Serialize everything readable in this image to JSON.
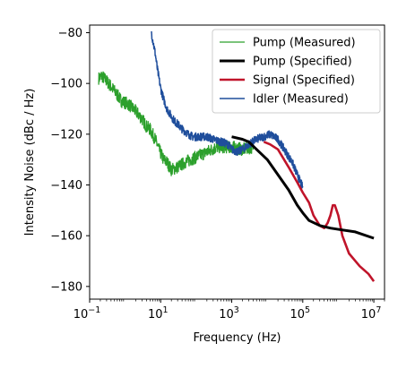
{
  "chart_data": {
    "type": "line",
    "xlabel": "Frequency (Hz)",
    "ylabel": "Intensity Noise  (dBc / Hz)",
    "xscale": "log",
    "xlim": [
      0.1,
      20000000
    ],
    "ylim": [
      -185,
      -77
    ],
    "x_ticks": [
      {
        "value": 0.1,
        "base": "10",
        "exp": "−1"
      },
      {
        "value": 10,
        "base": "10",
        "exp": "1"
      },
      {
        "value": 1000,
        "base": "10",
        "exp": "3"
      },
      {
        "value": 100000,
        "base": "10",
        "exp": "5"
      },
      {
        "value": 10000000,
        "base": "10",
        "exp": "7"
      }
    ],
    "y_ticks": [
      -80,
      -100,
      -120,
      -140,
      -160,
      -180
    ],
    "legend_position": "top-right",
    "grid": false,
    "series": [
      {
        "name": "Pump (Measured)",
        "color": "#2ca02c",
        "style": "noisy",
        "noise_amp": 2.5,
        "points": [
          [
            0.18,
            -98
          ],
          [
            0.22,
            -97
          ],
          [
            0.3,
            -99
          ],
          [
            0.5,
            -103
          ],
          [
            0.8,
            -107
          ],
          [
            1.2,
            -108
          ],
          [
            2,
            -111
          ],
          [
            3,
            -114
          ],
          [
            4,
            -117
          ],
          [
            5,
            -118
          ],
          [
            7,
            -122
          ],
          [
            9,
            -126
          ],
          [
            12,
            -130
          ],
          [
            15,
            -131
          ],
          [
            20,
            -134
          ],
          [
            30,
            -133
          ],
          [
            50,
            -131
          ],
          [
            100,
            -129
          ],
          [
            200,
            -127
          ],
          [
            400,
            -125
          ],
          [
            700,
            -125
          ],
          [
            1000,
            -125
          ],
          [
            2000,
            -126
          ],
          [
            4000,
            -125
          ]
        ]
      },
      {
        "name": "Pump (Specified)",
        "color": "#000000",
        "style": "smooth",
        "points": [
          [
            1000,
            -121
          ],
          [
            2000,
            -122
          ],
          [
            3000,
            -123
          ],
          [
            5000,
            -126
          ],
          [
            10000,
            -130
          ],
          [
            20000,
            -136
          ],
          [
            40000,
            -142
          ],
          [
            70000,
            -148
          ],
          [
            100000,
            -151
          ],
          [
            150000,
            -154
          ],
          [
            300000,
            -156
          ],
          [
            600000,
            -157
          ],
          [
            1000000,
            -157.5
          ],
          [
            3000000,
            -158.5
          ],
          [
            10000000,
            -161
          ]
        ]
      },
      {
        "name": "Signal (Specified)",
        "color": "#c0142a",
        "style": "smooth",
        "points": [
          [
            8000,
            -123
          ],
          [
            12000,
            -124
          ],
          [
            20000,
            -126
          ],
          [
            40000,
            -133
          ],
          [
            70000,
            -139
          ],
          [
            100000,
            -143
          ],
          [
            150000,
            -147
          ],
          [
            200000,
            -152
          ],
          [
            300000,
            -156
          ],
          [
            400000,
            -157
          ],
          [
            500000,
            -155
          ],
          [
            600000,
            -152
          ],
          [
            700000,
            -148
          ],
          [
            800000,
            -148
          ],
          [
            1000000,
            -152
          ],
          [
            1300000,
            -160
          ],
          [
            2000000,
            -167
          ],
          [
            4000000,
            -172
          ],
          [
            7000000,
            -175
          ],
          [
            10000000,
            -178
          ]
        ]
      },
      {
        "name": "Idler (Measured)",
        "color": "#1f4e9c",
        "style": "noisy",
        "noise_amp": 1.6,
        "points": [
          [
            5.5,
            -80
          ],
          [
            6,
            -83
          ],
          [
            7,
            -88
          ],
          [
            8,
            -94
          ],
          [
            10,
            -102
          ],
          [
            12,
            -106
          ],
          [
            15,
            -110
          ],
          [
            20,
            -113
          ],
          [
            25,
            -115
          ],
          [
            30,
            -116
          ],
          [
            40,
            -118
          ],
          [
            50,
            -119
          ],
          [
            60,
            -120
          ],
          [
            80,
            -121
          ],
          [
            100,
            -121
          ],
          [
            150,
            -121
          ],
          [
            200,
            -121
          ],
          [
            300,
            -122
          ],
          [
            500,
            -123
          ],
          [
            800,
            -124
          ],
          [
            1000,
            -126
          ],
          [
            1500,
            -127
          ],
          [
            2000,
            -126
          ],
          [
            3000,
            -124
          ],
          [
            5000,
            -122
          ],
          [
            8000,
            -121
          ],
          [
            12000,
            -120
          ],
          [
            20000,
            -122
          ],
          [
            30000,
            -126
          ],
          [
            50000,
            -131
          ],
          [
            70000,
            -136
          ],
          [
            100000,
            -141
          ]
        ]
      }
    ]
  }
}
